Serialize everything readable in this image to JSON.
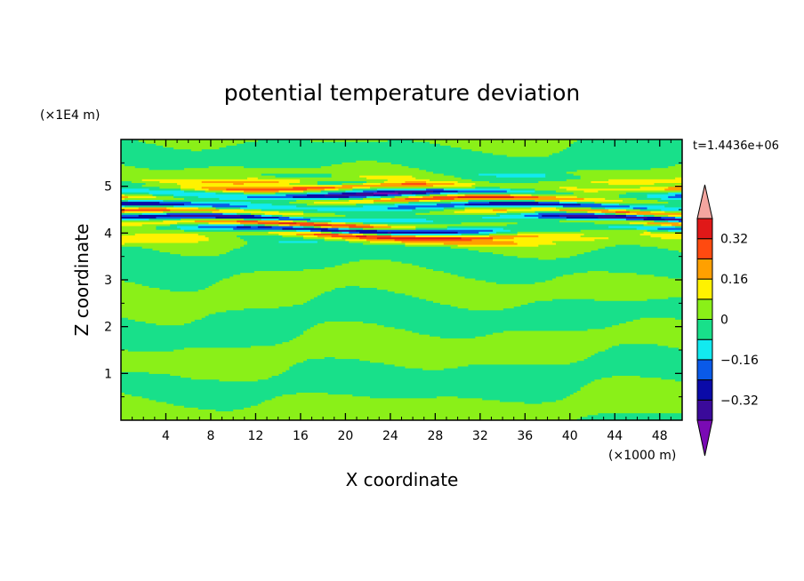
{
  "chart_data": {
    "type": "heatmap",
    "title": "potential temperature deviation",
    "xlabel": "X coordinate",
    "ylabel": "Z coordinate",
    "x_unit": "(×1000 m)",
    "y_unit": "(×1E4 m)",
    "time_label": "t=1.4436e+06",
    "xlim": [
      0,
      50
    ],
    "ylim": [
      0,
      6
    ],
    "x_ticks": [
      4,
      8,
      12,
      16,
      20,
      24,
      28,
      32,
      36,
      40,
      44,
      48
    ],
    "y_ticks": [
      1,
      2,
      3,
      4,
      5
    ],
    "colorbar": {
      "levels": [
        -0.4,
        -0.32,
        -0.24,
        -0.16,
        -0.08,
        0,
        0.08,
        0.16,
        0.24,
        0.32,
        0.4
      ],
      "colors": [
        "#7a0ab4",
        "#3a0a9a",
        "#0a0aa8",
        "#0a5ae8",
        "#12eaf0",
        "#18e08a",
        "#8af018",
        "#fff200",
        "#ffa000",
        "#ff4a10",
        "#e01818",
        "#f4a6a0"
      ],
      "labels": [
        "0.32",
        "0.16",
        "0",
        "−0.16",
        "−0.32"
      ],
      "label_values": [
        0.32,
        0.16,
        0,
        -0.16,
        -0.32
      ]
    },
    "bands": [
      {
        "z": 5.15,
        "amp": 0.12
      },
      {
        "z": 5.0,
        "amp": 0.3
      },
      {
        "z": 4.85,
        "amp": -0.36
      },
      {
        "z": 4.72,
        "amp": 0.34
      },
      {
        "z": 4.58,
        "amp": -0.28
      },
      {
        "z": 4.45,
        "amp": 0.3
      },
      {
        "z": 4.32,
        "amp": -0.34
      },
      {
        "z": 4.2,
        "amp": 0.3
      },
      {
        "z": 4.08,
        "amp": -0.4
      },
      {
        "z": 3.95,
        "amp": 0.34
      },
      {
        "z": 3.85,
        "amp": 0.16
      },
      {
        "z": 1.0,
        "amp": 0.18
      }
    ]
  }
}
